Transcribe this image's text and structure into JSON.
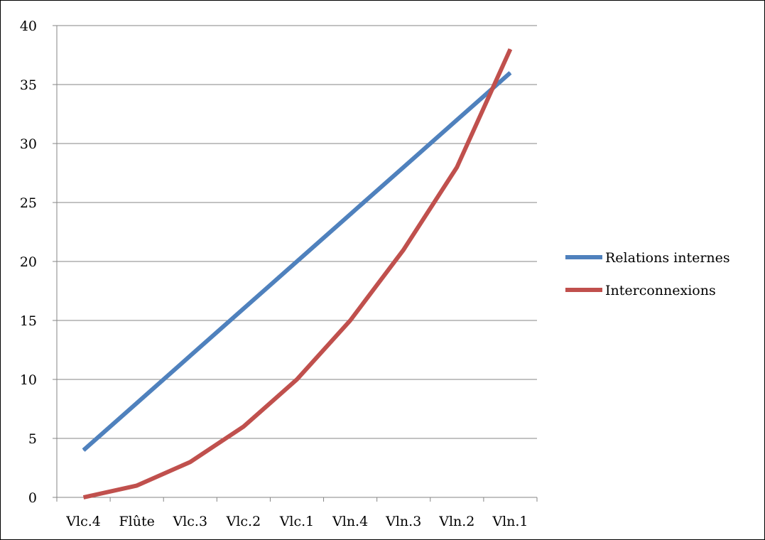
{
  "chart_data": {
    "type": "line",
    "categories": [
      "Vlc.4",
      "Flûte",
      "Vlc.3",
      "Vlc.2",
      "Vlc.1",
      "Vln.4",
      "Vln.3",
      "Vln.2",
      "Vln.1"
    ],
    "series": [
      {
        "name": "Relations internes",
        "color": "#4F81BD",
        "values": [
          4,
          8,
          12,
          16,
          20,
          24,
          28,
          32,
          36
        ]
      },
      {
        "name": "Interconnexions",
        "color": "#C0504D",
        "values": [
          0,
          1,
          3,
          6,
          10,
          15,
          21,
          28,
          38
        ]
      }
    ],
    "ylim": [
      0,
      40
    ],
    "yticks": [
      0,
      5,
      10,
      15,
      20,
      25,
      30,
      35,
      40
    ],
    "grid": true,
    "legend": "right"
  }
}
